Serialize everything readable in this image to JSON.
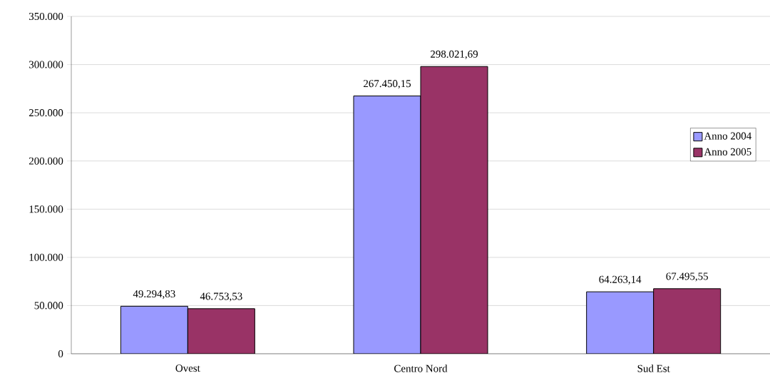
{
  "chart_data": {
    "type": "bar",
    "categories": [
      "Ovest",
      "Centro Nord",
      "Sud Est"
    ],
    "series": [
      {
        "name": "Anno 2004",
        "color": "#9999ff",
        "values": [
          49294.83,
          267450.15,
          64263.14
        ],
        "value_labels": [
          "49.294,83",
          "267.450,15",
          "64.263,14"
        ]
      },
      {
        "name": "Anno 2005",
        "color": "#993366",
        "values": [
          46753.53,
          298021.69,
          67495.55
        ],
        "value_labels": [
          "46.753,53",
          "298.021,69",
          "67.495,55"
        ]
      }
    ],
    "ylim": [
      0,
      350000
    ],
    "yticks": [
      0,
      {
        "value": 50000,
        "label": "50.000"
      },
      {
        "value": 100000,
        "label": "100.000"
      },
      {
        "value": 150000,
        "label": "150.000"
      },
      {
        "value": 200000,
        "label": "200.000"
      },
      {
        "value": 250000,
        "label": "250.000"
      },
      {
        "value": 300000,
        "label": "300.000"
      },
      {
        "value": 350000,
        "label": "350.000"
      }
    ],
    "grid": "y",
    "legend": "right"
  }
}
